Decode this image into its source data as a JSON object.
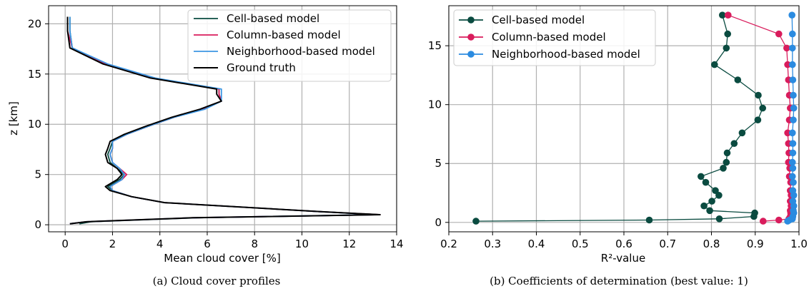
{
  "chart_data": [
    {
      "type": "line",
      "xlabel": "Mean cloud cover [%]",
      "ylabel": "z [km]",
      "caption": "(a) Cloud cover profiles",
      "xlim": [
        -0.7,
        14
      ],
      "ylim": [
        -0.7,
        21.8
      ],
      "xticks": [
        0,
        2,
        4,
        6,
        8,
        10,
        12,
        14
      ],
      "yticks": [
        0,
        5,
        10,
        15,
        20
      ],
      "grid": true,
      "legend_position": "top-right",
      "z": [
        0.1,
        0.3,
        0.7,
        1.0,
        1.3,
        2.2,
        2.8,
        3.4,
        3.8,
        4.5,
        5.0,
        5.6,
        6.2,
        7.0,
        7.6,
        8.3,
        9.0,
        9.8,
        10.7,
        11.5,
        12.3,
        13.0,
        13.5,
        14.6,
        16.0,
        17.6,
        19.3,
        20.7
      ],
      "series": [
        {
          "name": "Cell-based model",
          "color": "#0a4b40",
          "marker": "none",
          "x": [
            0.6,
            1.1,
            5.6,
            13.3,
            10.8,
            4.2,
            2.8,
            2.0,
            1.8,
            2.3,
            2.5,
            2.2,
            1.9,
            1.8,
            1.9,
            2.0,
            2.6,
            3.5,
            4.6,
            5.8,
            6.6,
            6.5,
            6.5,
            3.7,
            1.7,
            0.3,
            0.2,
            0.2
          ]
        },
        {
          "name": "Column-based model",
          "color": "#d91c5c",
          "marker": "none",
          "x": [
            0.2,
            0.9,
            5.4,
            13.3,
            10.8,
            4.2,
            2.8,
            2.0,
            1.9,
            2.4,
            2.6,
            2.3,
            2.0,
            1.9,
            2.0,
            2.0,
            2.6,
            3.5,
            4.6,
            5.8,
            6.6,
            6.5,
            6.5,
            3.7,
            1.7,
            0.3,
            0.1,
            0.1
          ]
        },
        {
          "name": "Neighborhood-based model",
          "color": "#3b96e3",
          "marker": "none",
          "x": [
            0.2,
            0.9,
            5.4,
            13.2,
            10.8,
            4.2,
            2.8,
            2.0,
            1.9,
            2.4,
            2.5,
            2.3,
            2.0,
            1.9,
            2.0,
            2.0,
            2.6,
            3.5,
            4.6,
            5.9,
            6.6,
            6.6,
            6.6,
            3.8,
            1.8,
            0.3,
            0.2,
            0.2
          ]
        },
        {
          "name": "Ground truth",
          "color": "#000000",
          "marker": "none",
          "x": [
            0.2,
            0.9,
            5.4,
            13.3,
            10.8,
            4.2,
            2.8,
            1.9,
            1.7,
            2.2,
            2.4,
            2.2,
            1.8,
            1.7,
            1.8,
            1.9,
            2.5,
            3.4,
            4.5,
            5.7,
            6.6,
            6.4,
            6.4,
            3.6,
            1.6,
            0.2,
            0.1,
            0.1
          ]
        }
      ]
    },
    {
      "type": "line",
      "xlabel": "R²-value",
      "caption": "(b) Coefficients of determination (best value: 1)",
      "xlim": [
        0.2,
        1.0
      ],
      "ylim": [
        -0.8,
        18.4
      ],
      "xticks": [
        0.2,
        0.3,
        0.4,
        0.5,
        0.6,
        0.7,
        0.8,
        0.9,
        1.0
      ],
      "yticks": [
        0,
        5,
        10,
        15
      ],
      "grid": true,
      "legend_position": "top-left",
      "series": [
        {
          "name": "Cell-based model",
          "color": "#0a4b40",
          "marker": "circle",
          "points": [
            [
              0.262,
              0.1
            ],
            [
              0.658,
              0.2
            ],
            [
              0.818,
              0.3
            ],
            [
              0.897,
              0.5
            ],
            [
              0.899,
              0.8
            ],
            [
              0.796,
              1.0
            ],
            [
              0.783,
              1.4
            ],
            [
              0.801,
              1.8
            ],
            [
              0.817,
              2.3
            ],
            [
              0.809,
              2.7
            ],
            [
              0.787,
              3.4
            ],
            [
              0.776,
              3.9
            ],
            [
              0.827,
              4.6
            ],
            [
              0.834,
              5.1
            ],
            [
              0.836,
              5.9
            ],
            [
              0.852,
              6.7
            ],
            [
              0.87,
              7.6
            ],
            [
              0.906,
              8.7
            ],
            [
              0.917,
              9.7
            ],
            [
              0.907,
              10.8
            ],
            [
              0.86,
              12.1
            ],
            [
              0.807,
              13.4
            ],
            [
              0.834,
              14.8
            ],
            [
              0.837,
              16.0
            ],
            [
              0.825,
              17.6
            ]
          ]
        },
        {
          "name": "Column-based model",
          "color": "#d91c5c",
          "marker": "circle",
          "points": [
            [
              0.918,
              0.1
            ],
            [
              0.954,
              0.2
            ],
            [
              0.977,
              0.3
            ],
            [
              0.98,
              0.5
            ],
            [
              0.981,
              0.8
            ],
            [
              0.98,
              1.0
            ],
            [
              0.982,
              1.4
            ],
            [
              0.98,
              1.8
            ],
            [
              0.982,
              2.3
            ],
            [
              0.98,
              2.7
            ],
            [
              0.981,
              3.4
            ],
            [
              0.978,
              3.9
            ],
            [
              0.979,
              4.6
            ],
            [
              0.976,
              5.1
            ],
            [
              0.977,
              5.9
            ],
            [
              0.976,
              6.7
            ],
            [
              0.974,
              7.6
            ],
            [
              0.978,
              8.7
            ],
            [
              0.98,
              9.7
            ],
            [
              0.978,
              10.8
            ],
            [
              0.976,
              12.1
            ],
            [
              0.974,
              13.4
            ],
            [
              0.972,
              14.8
            ],
            [
              0.954,
              16.0
            ],
            [
              0.838,
              17.6
            ]
          ]
        },
        {
          "name": "Neighborhood-based model",
          "color": "#2b8be0",
          "marker": "circle",
          "points": [
            [
              0.974,
              0.1
            ],
            [
              0.978,
              0.2
            ],
            [
              0.985,
              0.3
            ],
            [
              0.986,
              0.5
            ],
            [
              0.988,
              0.8
            ],
            [
              0.987,
              1.0
            ],
            [
              0.988,
              1.4
            ],
            [
              0.986,
              1.8
            ],
            [
              0.988,
              2.3
            ],
            [
              0.986,
              2.7
            ],
            [
              0.987,
              3.4
            ],
            [
              0.985,
              3.9
            ],
            [
              0.986,
              4.6
            ],
            [
              0.985,
              5.1
            ],
            [
              0.986,
              5.9
            ],
            [
              0.986,
              6.7
            ],
            [
              0.985,
              7.6
            ],
            [
              0.987,
              8.7
            ],
            [
              0.988,
              9.7
            ],
            [
              0.987,
              10.8
            ],
            [
              0.986,
              12.1
            ],
            [
              0.985,
              13.4
            ],
            [
              0.985,
              14.8
            ],
            [
              0.985,
              16.0
            ],
            [
              0.984,
              17.6
            ]
          ]
        }
      ]
    }
  ]
}
